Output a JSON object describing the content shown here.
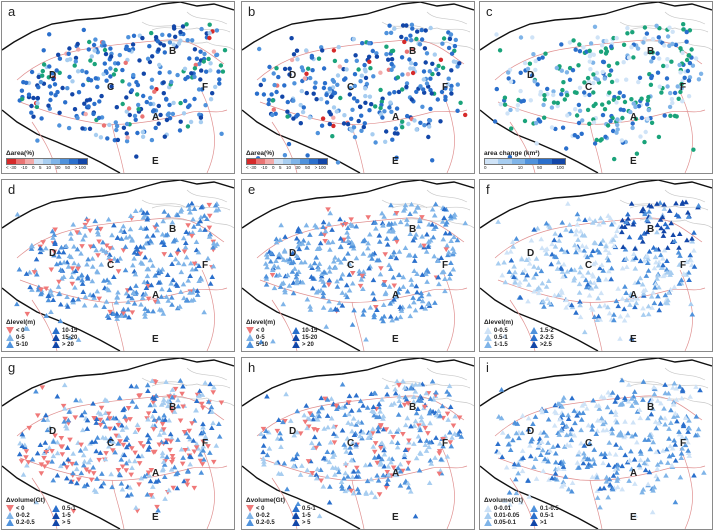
{
  "regions": [
    "A",
    "B",
    "C",
    "D",
    "E",
    "F"
  ],
  "colors": {
    "border_dark": "#111111",
    "border_gray": "#c8c8c8",
    "border_pink": "#e09090",
    "neg": "#f07878",
    "blue_scale": [
      "#cfe3f7",
      "#a7cdf0",
      "#7fb4e8",
      "#4f92dc",
      "#2a6fcc",
      "#1246a8"
    ],
    "green": "#1aa37a",
    "red_scale": [
      "#d62a2a",
      "#ea7373",
      "#f2aaaa"
    ]
  },
  "panels": [
    {
      "letter": "a",
      "marker": "circle",
      "palette": "area",
      "legend": {
        "title": "Δarea(%)",
        "type": "colorbar",
        "ticks": [
          "< -30",
          "-10",
          "0",
          "5",
          "10",
          "30",
          "50",
          "> 100"
        ]
      }
    },
    {
      "letter": "b",
      "marker": "circle",
      "palette": "area",
      "legend": {
        "title": "Δarea(%)",
        "type": "colorbar",
        "ticks": [
          "< -30",
          "-10",
          "0",
          "5",
          "10",
          "30",
          "50",
          "> 100"
        ]
      }
    },
    {
      "letter": "c",
      "marker": "circle",
      "palette": "areachange",
      "legend": {
        "title": "area change (km²)",
        "type": "colorbar",
        "ticks": [
          "0",
          "1",
          "10",
          "50",
          "100"
        ]
      }
    },
    {
      "letter": "d",
      "marker": "triangle",
      "palette": "level",
      "legend": {
        "title": "Δlevel(m)",
        "type": "tri",
        "items": [
          "< 0",
          "10-15",
          "0-5",
          "15-20",
          "5-10",
          "> 20"
        ]
      }
    },
    {
      "letter": "e",
      "marker": "triangle",
      "palette": "level2",
      "legend": {
        "title": "Δlevel(m)",
        "type": "tri",
        "items": [
          "< 0",
          "10-15",
          "0-5",
          "15-20",
          "5-10",
          "> 20"
        ]
      }
    },
    {
      "letter": "f",
      "marker": "triangle",
      "palette": "level3",
      "legend": {
        "title": "Δlevel(m)",
        "type": "tri",
        "items": [
          "0-0.5",
          "1.5-2",
          "0.5-1",
          "2-2.5",
          "1-1.5",
          ">2.5"
        ]
      }
    },
    {
      "letter": "g",
      "marker": "triangle",
      "palette": "volume",
      "legend": {
        "title": "Δvolume(Gt)",
        "type": "tri",
        "items": [
          "< 0",
          "0.5-1",
          "0-0.2",
          "1-5",
          "0.2-0.5",
          "> 5"
        ]
      }
    },
    {
      "letter": "h",
      "marker": "triangle",
      "palette": "volume2",
      "legend": {
        "title": "Δvolume(Gt)",
        "type": "tri",
        "items": [
          "< 0",
          "0.5-1",
          "0-0.2",
          "1-5",
          "0.2-0.5",
          "> 5"
        ]
      }
    },
    {
      "letter": "i",
      "marker": "triangle",
      "palette": "volume3",
      "legend": {
        "title": "Δvolume(Gt)",
        "type": "tri",
        "items": [
          "0-0.01",
          "0.1-0.5",
          "0.01-0.05",
          "0.5-1",
          "0.05-0.1",
          ">1"
        ]
      }
    }
  ]
}
